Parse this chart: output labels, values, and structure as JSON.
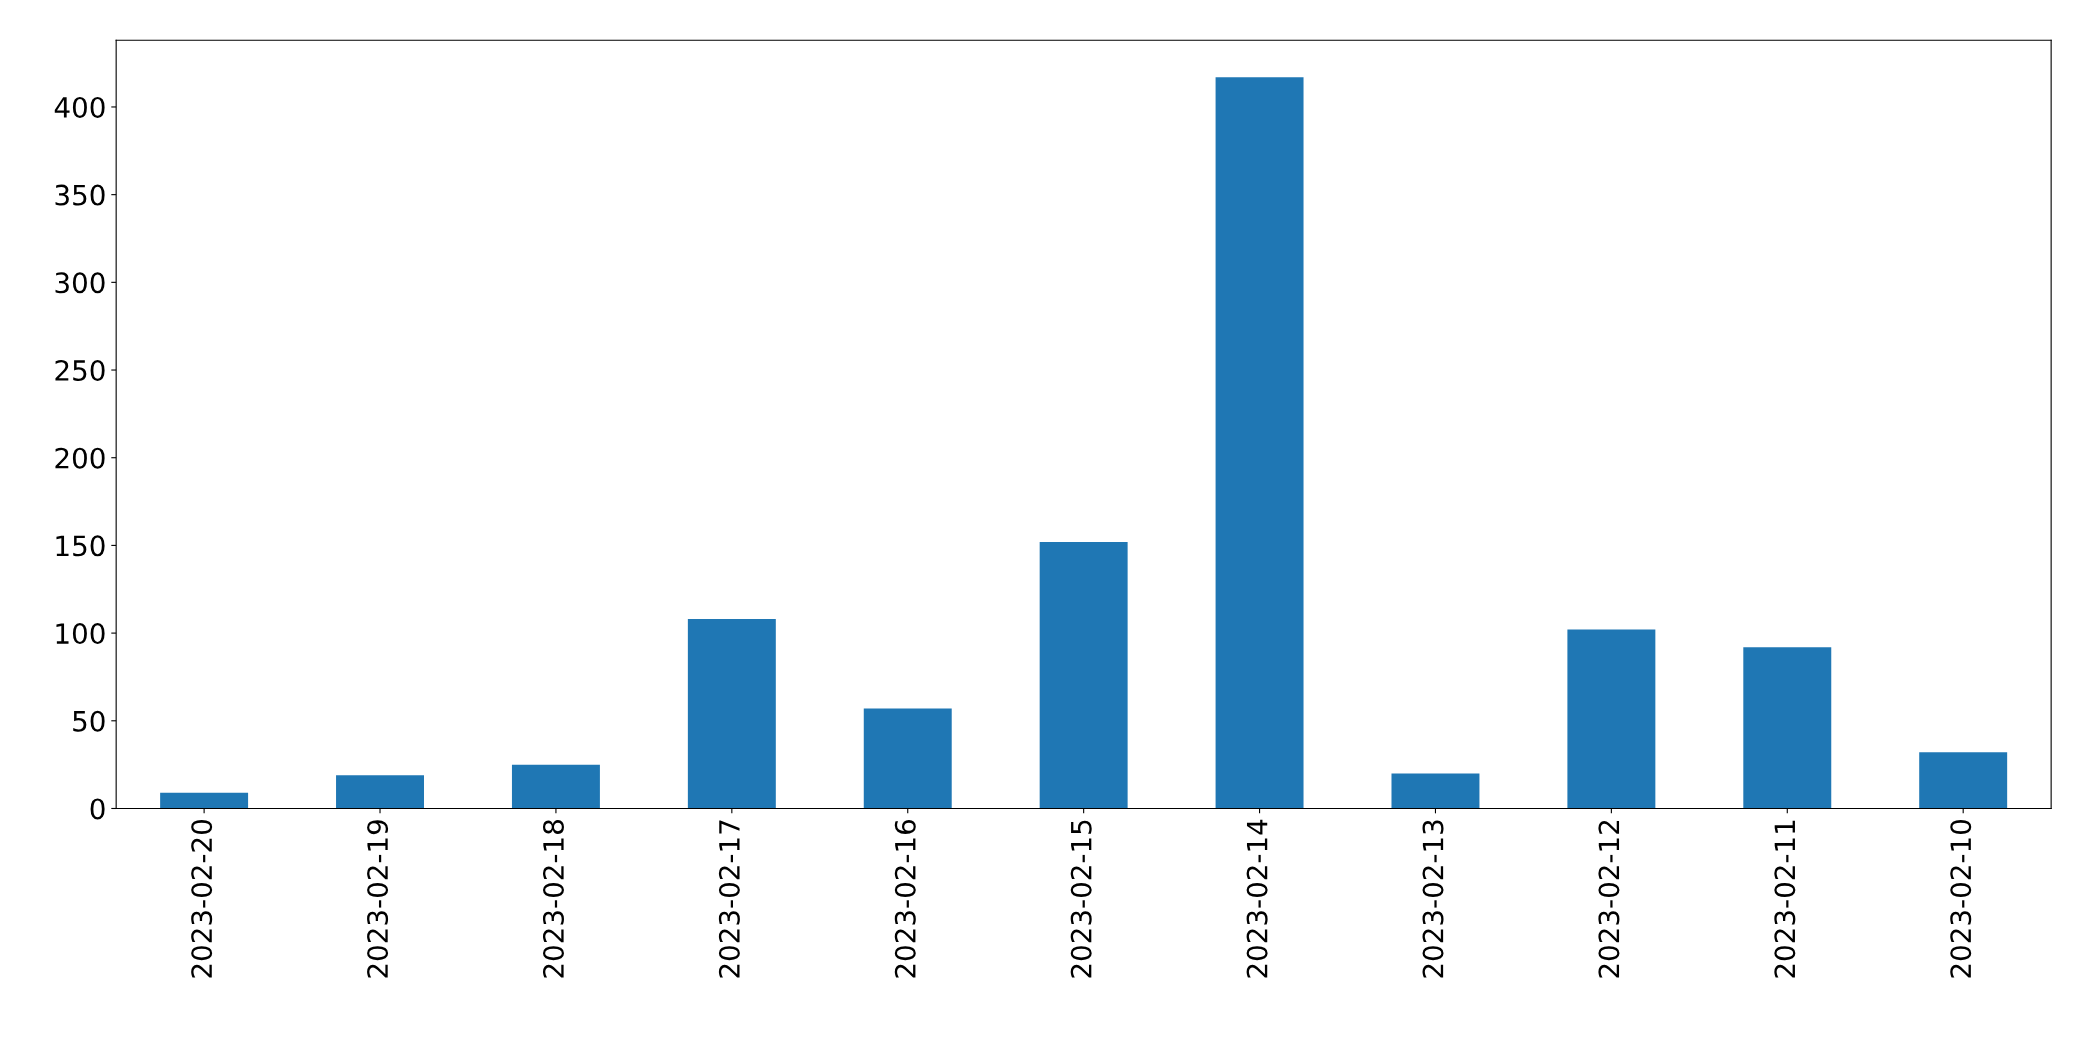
{
  "chart_data": {
    "type": "bar",
    "categories": [
      "2023-02-20",
      "2023-02-19",
      "2023-02-18",
      "2023-02-17",
      "2023-02-16",
      "2023-02-15",
      "2023-02-14",
      "2023-02-13",
      "2023-02-12",
      "2023-02-11",
      "2023-02-10"
    ],
    "values": [
      9,
      19,
      25,
      108,
      57,
      152,
      417,
      20,
      102,
      92,
      32
    ],
    "color": "#1f77b4",
    "ylim": [
      0,
      438
    ],
    "yticks": [
      0,
      50,
      100,
      150,
      200,
      250,
      300,
      350,
      400
    ],
    "grid": false,
    "legend": false
  }
}
